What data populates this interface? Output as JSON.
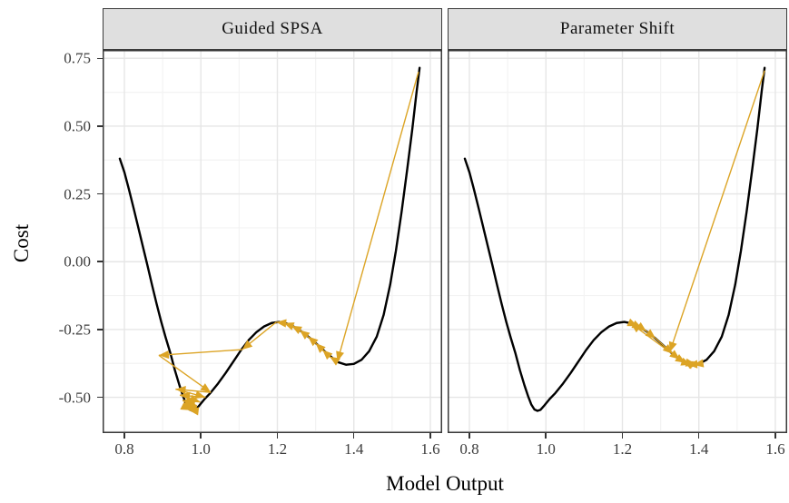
{
  "chart_data": {
    "type": "line",
    "title": "",
    "xlabel": "Model Output",
    "ylabel": "Cost",
    "grid": true,
    "legend": false,
    "xlim": [
      0.743,
      1.631
    ],
    "ylim": [
      -0.632,
      0.781
    ],
    "x_ticks": {
      "values": [
        0.8,
        1.0,
        1.2,
        1.4,
        1.6
      ],
      "labels": [
        "0.8",
        "1.0",
        "1.2",
        "1.4",
        "1.6"
      ]
    },
    "y_ticks": {
      "values": [
        0.75,
        0.5,
        0.25,
        0.0,
        -0.25,
        -0.5
      ],
      "labels": [
        "0.75",
        "0.50",
        "0.25",
        "0.00",
        "-0.25",
        "-0.50"
      ]
    },
    "x_minor": [
      0.9,
      1.1,
      1.3,
      1.5
    ],
    "y_minor": [
      0.625,
      0.375,
      0.125,
      -0.125,
      -0.375,
      -0.625
    ],
    "colors": {
      "curve": "#000000",
      "trajectory": "#DCA425",
      "grid_major": "#E6E6E6",
      "grid_minor": "#F3F3F3",
      "panel_border": "#3A3A3A",
      "strip_bg": "#DFDFDF",
      "axis_text": "#3D3D3D"
    },
    "curve_name": "cost landscape",
    "curve": [
      [
        0.788,
        0.38
      ],
      [
        0.8,
        0.33
      ],
      [
        0.812,
        0.266
      ],
      [
        0.824,
        0.198
      ],
      [
        0.836,
        0.128
      ],
      [
        0.848,
        0.058
      ],
      [
        0.86,
        -0.012
      ],
      [
        0.872,
        -0.084
      ],
      [
        0.884,
        -0.154
      ],
      [
        0.896,
        -0.22
      ],
      [
        0.908,
        -0.28
      ],
      [
        0.92,
        -0.336
      ],
      [
        0.932,
        -0.4
      ],
      [
        0.944,
        -0.456
      ],
      [
        0.954,
        -0.498
      ],
      [
        0.962,
        -0.527
      ],
      [
        0.97,
        -0.545
      ],
      [
        0.978,
        -0.55
      ],
      [
        0.986,
        -0.546
      ],
      [
        0.996,
        -0.53
      ],
      [
        1.01,
        -0.506
      ],
      [
        1.025,
        -0.484
      ],
      [
        1.045,
        -0.449
      ],
      [
        1.065,
        -0.41
      ],
      [
        1.085,
        -0.368
      ],
      [
        1.105,
        -0.326
      ],
      [
        1.125,
        -0.289
      ],
      [
        1.145,
        -0.26
      ],
      [
        1.165,
        -0.239
      ],
      [
        1.185,
        -0.226
      ],
      [
        1.205,
        -0.222
      ],
      [
        1.225,
        -0.228
      ],
      [
        1.245,
        -0.241
      ],
      [
        1.265,
        -0.259
      ],
      [
        1.285,
        -0.281
      ],
      [
        1.305,
        -0.306
      ],
      [
        1.325,
        -0.332
      ],
      [
        1.345,
        -0.356
      ],
      [
        1.36,
        -0.371
      ],
      [
        1.38,
        -0.38
      ],
      [
        1.4,
        -0.377
      ],
      [
        1.42,
        -0.362
      ],
      [
        1.44,
        -0.33
      ],
      [
        1.46,
        -0.276
      ],
      [
        1.478,
        -0.196
      ],
      [
        1.495,
        -0.085
      ],
      [
        1.51,
        0.04
      ],
      [
        1.525,
        0.185
      ],
      [
        1.54,
        0.345
      ],
      [
        1.553,
        0.49
      ],
      [
        1.564,
        0.625
      ],
      [
        1.572,
        0.715
      ]
    ],
    "facets": [
      {
        "label": "Guided SPSA",
        "trajectory": [
          [
            1.569,
            0.7
          ],
          [
            1.357,
            -0.368
          ],
          [
            1.337,
            -0.35
          ],
          [
            1.318,
            -0.325
          ],
          [
            1.3,
            -0.3
          ],
          [
            1.28,
            -0.276
          ],
          [
            1.258,
            -0.252
          ],
          [
            1.237,
            -0.236
          ],
          [
            1.217,
            -0.226
          ],
          [
            1.197,
            -0.223
          ],
          [
            1.108,
            -0.324
          ],
          [
            0.89,
            -0.345
          ],
          [
            1.026,
            -0.482
          ],
          [
            0.934,
            -0.47
          ],
          [
            1.012,
            -0.5
          ],
          [
            0.945,
            -0.492
          ],
          [
            0.998,
            -0.517
          ],
          [
            0.952,
            -0.512
          ],
          [
            0.988,
            -0.53
          ],
          [
            0.958,
            -0.528
          ],
          [
            0.98,
            -0.542
          ],
          [
            0.963,
            -0.54
          ],
          [
            0.974,
            -0.548
          ],
          [
            0.968,
            -0.547
          ]
        ]
      },
      {
        "label": "Parameter Shift",
        "trajectory": [
          [
            1.572,
            0.705
          ],
          [
            1.324,
            -0.333
          ],
          [
            1.222,
            -0.227
          ],
          [
            1.24,
            -0.238
          ],
          [
            1.252,
            -0.246
          ],
          [
            1.263,
            -0.257
          ],
          [
            1.287,
            -0.283
          ],
          [
            1.332,
            -0.34
          ],
          [
            1.35,
            -0.36
          ],
          [
            1.365,
            -0.373
          ],
          [
            1.38,
            -0.38
          ],
          [
            1.358,
            -0.37
          ],
          [
            1.392,
            -0.378
          ],
          [
            1.37,
            -0.379
          ],
          [
            1.4,
            -0.377
          ],
          [
            1.386,
            -0.38
          ]
        ]
      }
    ]
  }
}
